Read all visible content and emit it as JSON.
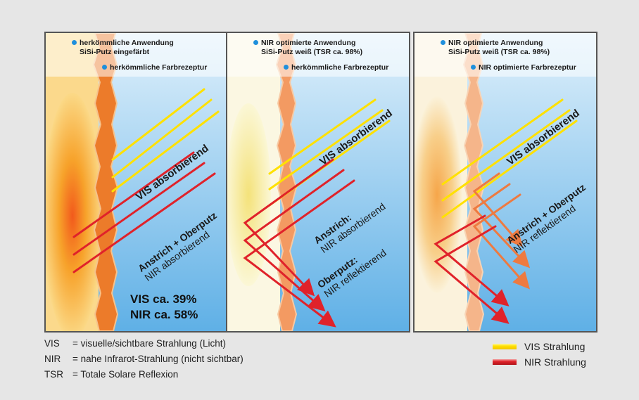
{
  "panels": [
    {
      "caption1": "herkömmliche Anwendung",
      "caption1b": "SiSi-Putz eingefärbt",
      "caption2": "herkömmliche Farbrezeptur",
      "label_vis": "VIS absorbierend",
      "label_nir_line1": "Anstrich + Oberputz",
      "label_nir_line2": "NIR absorbierend",
      "result_vis": "VIS ca. 39%",
      "result_nir": "NIR ca. 58%"
    },
    {
      "caption1": "NIR optimierte Anwendung",
      "caption1b": "SiSi-Putz weiß (TSR ca. 98%)",
      "caption2": "herkömmliche Farbrezeptur",
      "label_vis": "VIS absorbierend",
      "label_a_line1": "Anstrich:",
      "label_a_line2": "NIR absorbierend",
      "label_b_line1": "Oberputz:",
      "label_b_line2": "NIR reflektierend"
    },
    {
      "caption1": "NIR optimierte Anwendung",
      "caption1b": "SiSi-Putz weiß (TSR ca. 98%)",
      "caption2": "NIR optimierte Farbrezeptur",
      "label_vis": "VIS absorbierend",
      "label_nir_line1": "Anstrich + Oberputz",
      "label_nir_line2": "NIR reflektierend"
    }
  ],
  "legend": {
    "vis_key": "VIS",
    "vis_def": "=  visuelle/sichtbare Strahlung (Licht)",
    "nir_key": "NIR",
    "nir_def": "=  nahe Infrarot-Strahlung (nicht sichtbar)",
    "tsr_key": "TSR",
    "tsr_def": "=  Totale Solare Reflexion",
    "swatch_vis": "VIS Strahlung",
    "swatch_nir": "NIR Strahlung"
  },
  "colors": {
    "vis": "#ffe100",
    "nir": "#e0222a",
    "sky": "#8dc7ec",
    "bullet": "#1f8fdc"
  }
}
